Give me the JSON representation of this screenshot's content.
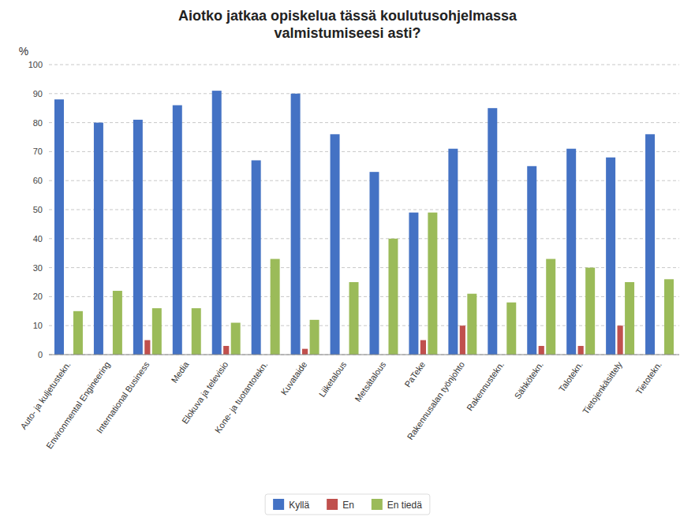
{
  "chart_data": {
    "type": "bar",
    "title": "Aiotko jatkaa opiskelua tässä koulutusohjelmassa\nvalmistumiseesi asti?",
    "y_label": "%",
    "categories": [
      "Auto- ja kuljetustekn.",
      "Environmental Engineering",
      "International Business",
      "Media",
      "Elokuva ja televisio",
      "Kone- ja tuotantotekn.",
      "Kuvataide",
      "Liiketalous",
      "Metsätalous",
      "PaTeke",
      "Rakennusalan työnjohto",
      "Rakennustekn.",
      "Sähkötekn.",
      "Talotekn.",
      "Tietojenkäsittely",
      "Tietotekn."
    ],
    "series": [
      {
        "name": "Kyllä",
        "color": "#4472C4",
        "values": [
          88,
          80,
          81,
          86,
          91,
          67,
          90,
          76,
          63,
          49,
          71,
          85,
          65,
          71,
          68,
          76
        ]
      },
      {
        "name": "En",
        "color": "#C0504D",
        "values": [
          0,
          0,
          5,
          0,
          3,
          0,
          2,
          0,
          0,
          5,
          10,
          0,
          3,
          3,
          10,
          0
        ]
      },
      {
        "name": "En tiedä",
        "color": "#9BBB59",
        "values": [
          15,
          22,
          16,
          16,
          11,
          33,
          12,
          25,
          40,
          49,
          21,
          18,
          33,
          30,
          25,
          26
        ]
      }
    ],
    "ylim": [
      0,
      100
    ],
    "yticks": [
      0,
      10,
      20,
      30,
      40,
      50,
      60,
      70,
      80,
      90,
      100
    ],
    "grid": true,
    "legend": "bottom"
  }
}
